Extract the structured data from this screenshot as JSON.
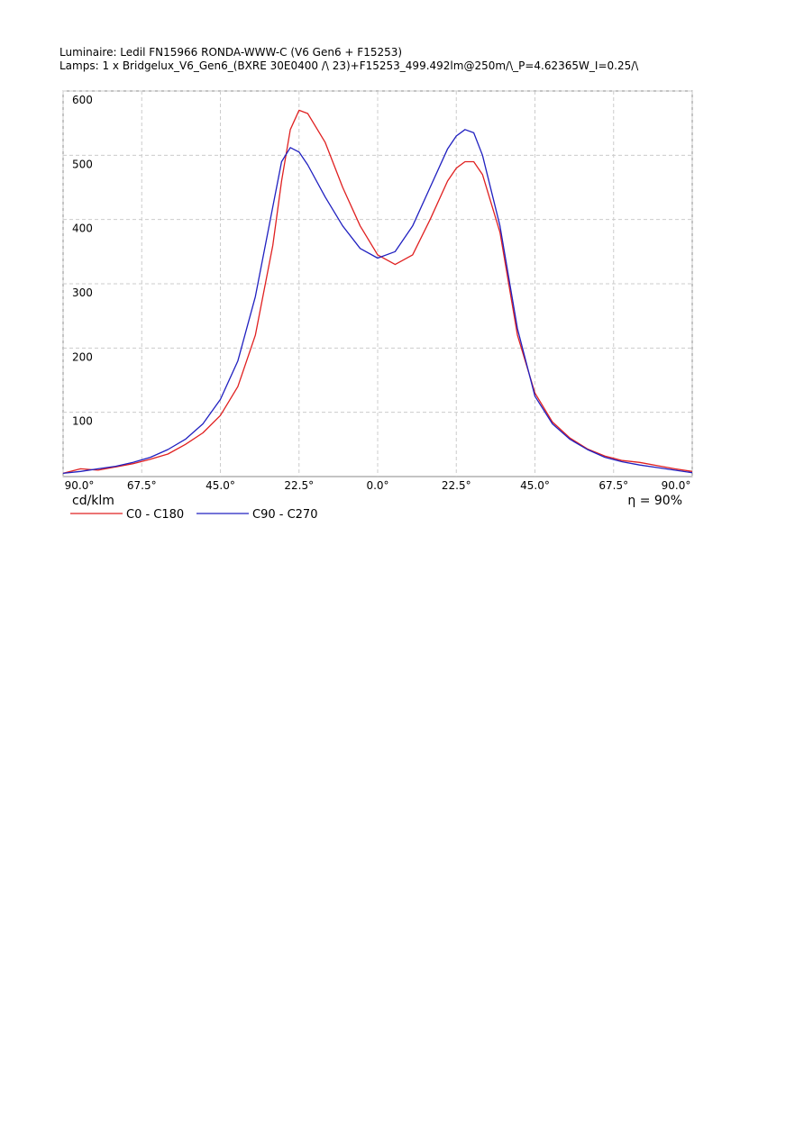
{
  "chart_data": {
    "type": "line",
    "title": "Luminaire: Ledil FN15966  RONDA-WWW-C  (V6  Gen6  +  F15253)",
    "subtitle": "Lamps: 1 x Bridgelux_V6_Gen6_(BXRE 30E0400 /\\ 23)+F15253_499.492lm@250m/\\_P=4.62365W_I=0.25/\\",
    "y_label": "cd/klm",
    "annotation": "η = 90%",
    "x": [
      -90,
      -85,
      -80,
      -75,
      -70,
      -65,
      -60,
      -55,
      -50,
      -45,
      -40,
      -35,
      -30,
      -27.5,
      -25,
      -22.5,
      -20,
      -15,
      -10,
      -5,
      0,
      5,
      10,
      15,
      20,
      22.5,
      25,
      27.5,
      30,
      35,
      40,
      45,
      50,
      55,
      60,
      65,
      70,
      75,
      80,
      85,
      90
    ],
    "series": [
      {
        "name": "C0 - C180",
        "color": "#e02020",
        "values": [
          5,
          12,
          10,
          15,
          20,
          27,
          35,
          50,
          68,
          95,
          140,
          220,
          360,
          460,
          540,
          570,
          565,
          520,
          450,
          390,
          345,
          330,
          345,
          400,
          460,
          480,
          490,
          490,
          470,
          380,
          220,
          130,
          85,
          60,
          43,
          32,
          25,
          22,
          17,
          12,
          8
        ]
      },
      {
        "name": "C90 - C270",
        "color": "#2020c0",
        "values": [
          5,
          8,
          12,
          16,
          22,
          30,
          42,
          58,
          82,
          120,
          180,
          280,
          420,
          490,
          512,
          505,
          485,
          435,
          390,
          355,
          340,
          350,
          390,
          450,
          510,
          530,
          540,
          535,
          500,
          390,
          230,
          125,
          82,
          58,
          42,
          30,
          23,
          18,
          14,
          10,
          6
        ]
      }
    ],
    "xlim": [
      -90,
      90
    ],
    "xticks": [
      {
        "value": -90,
        "label": "90.0°"
      },
      {
        "value": -67.5,
        "label": "67.5°"
      },
      {
        "value": -45,
        "label": "45.0°"
      },
      {
        "value": -22.5,
        "label": "22.5°"
      },
      {
        "value": 0,
        "label": "0.0°"
      },
      {
        "value": 22.5,
        "label": "22.5°"
      },
      {
        "value": 45,
        "label": "45.0°"
      },
      {
        "value": 67.5,
        "label": "67.5°"
      },
      {
        "value": 90,
        "label": "90.0°"
      }
    ],
    "ylim": [
      0,
      600
    ],
    "yticks": [
      100,
      200,
      300,
      400,
      500,
      600
    ],
    "grid": true
  }
}
